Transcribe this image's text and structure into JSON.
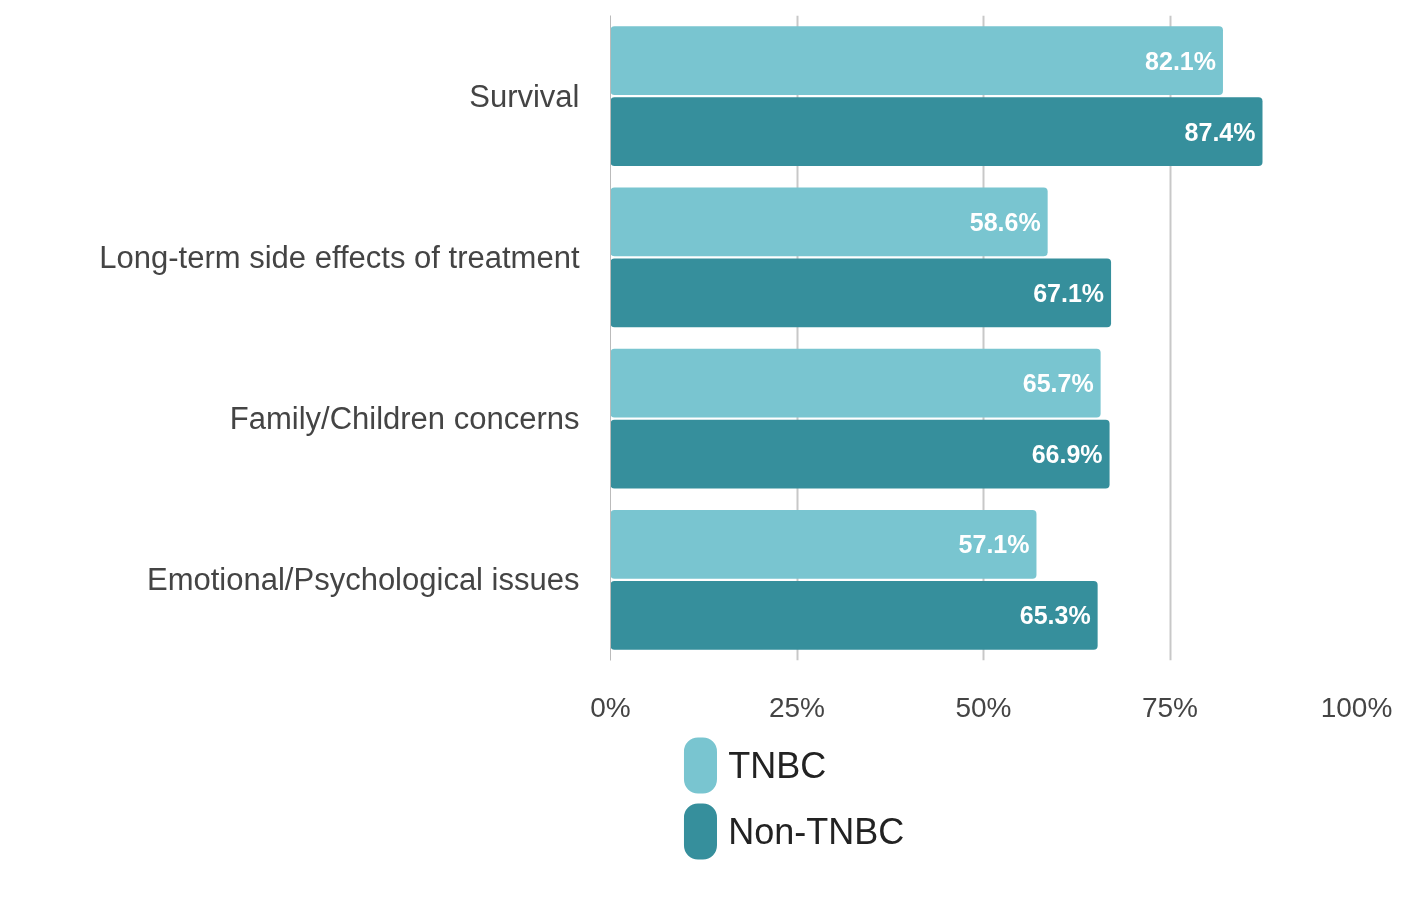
{
  "chart_data": {
    "type": "bar",
    "orientation": "horizontal",
    "categories": [
      "Survival",
      "Long-term side effects of treatment",
      "Family/Children concerns",
      "Emotional/Psychological issues"
    ],
    "series": [
      {
        "name": "TNBC",
        "color": "#79c5d0",
        "values": [
          82.1,
          58.6,
          65.7,
          57.1
        ],
        "value_labels": [
          "82.1%",
          "58.6%",
          "65.7%",
          "57.1%"
        ]
      },
      {
        "name": "Non-TNBC",
        "color": "#368f9c",
        "values": [
          87.4,
          67.1,
          66.9,
          65.3
        ],
        "value_labels": [
          "87.4%",
          "67.1%",
          "66.9%",
          "65.3%"
        ]
      }
    ],
    "xlim": [
      0,
      100
    ],
    "xticks": [
      {
        "value": 0,
        "label": "0%"
      },
      {
        "value": 25,
        "label": "25%"
      },
      {
        "value": 50,
        "label": "50%"
      },
      {
        "value": 75,
        "label": "75%"
      },
      {
        "value": 100,
        "label": "100%"
      }
    ],
    "grid": "x",
    "legend": "bottom left"
  }
}
